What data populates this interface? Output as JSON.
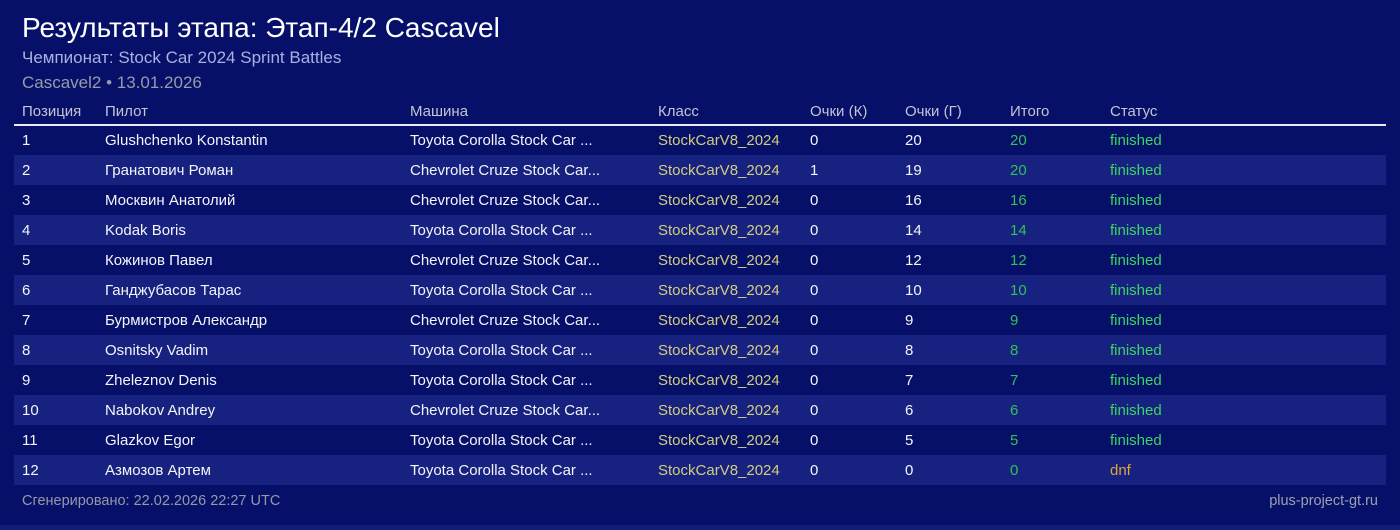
{
  "page": {
    "title": "Результаты этапа: Этап-4/2 Cascavel",
    "subtitle": "Чемпионат: Stock Car 2024 Sprint Battles",
    "meta": "Cascavel2 • 13.01.2026",
    "footer_left": "Сгенерировано: 22.02.2026 22:27 UTC",
    "footer_right": "plus-project-gt.ru"
  },
  "table": {
    "columns": [
      "Позиция",
      "Пилот",
      "Машина",
      "Класс",
      "Очки (К)",
      "Очки (Г)",
      "Итого",
      "Статус"
    ],
    "rows": [
      {
        "pos": "1",
        "pilot": "Glushchenko Konstantin",
        "car": "Toyota Corolla Stock Car ...",
        "car_class": "StockCarV8_2024",
        "pts_k": "0",
        "pts_g": "20",
        "total": "20",
        "status": "finished"
      },
      {
        "pos": "2",
        "pilot": "Гранатович Роман",
        "car": "Chevrolet Cruze Stock Car...",
        "car_class": "StockCarV8_2024",
        "pts_k": "1",
        "pts_g": "19",
        "total": "20",
        "status": "finished"
      },
      {
        "pos": "3",
        "pilot": "Москвин Анатолий",
        "car": "Chevrolet Cruze Stock Car...",
        "car_class": "StockCarV8_2024",
        "pts_k": "0",
        "pts_g": "16",
        "total": "16",
        "status": "finished"
      },
      {
        "pos": "4",
        "pilot": "Kodak Boris",
        "car": "Toyota Corolla Stock Car ...",
        "car_class": "StockCarV8_2024",
        "pts_k": "0",
        "pts_g": "14",
        "total": "14",
        "status": "finished"
      },
      {
        "pos": "5",
        "pilot": "Кожинов Павел",
        "car": "Chevrolet Cruze Stock Car...",
        "car_class": "StockCarV8_2024",
        "pts_k": "0",
        "pts_g": "12",
        "total": "12",
        "status": "finished"
      },
      {
        "pos": "6",
        "pilot": "Ганджубасов Тарас",
        "car": "Toyota Corolla Stock Car ...",
        "car_class": "StockCarV8_2024",
        "pts_k": "0",
        "pts_g": "10",
        "total": "10",
        "status": "finished"
      },
      {
        "pos": "7",
        "pilot": "Бурмистров Александр",
        "car": "Chevrolet Cruze Stock Car...",
        "car_class": "StockCarV8_2024",
        "pts_k": "0",
        "pts_g": "9",
        "total": "9",
        "status": "finished"
      },
      {
        "pos": "8",
        "pilot": "Osnitsky Vadim",
        "car": "Toyota Corolla Stock Car ...",
        "car_class": "StockCarV8_2024",
        "pts_k": "0",
        "pts_g": "8",
        "total": "8",
        "status": "finished"
      },
      {
        "pos": "9",
        "pilot": "Zheleznov Denis",
        "car": "Toyota Corolla Stock Car ...",
        "car_class": "StockCarV8_2024",
        "pts_k": "0",
        "pts_g": "7",
        "total": "7",
        "status": "finished"
      },
      {
        "pos": "10",
        "pilot": "Nabokov Andrey",
        "car": "Chevrolet Cruze Stock Car...",
        "car_class": "StockCarV8_2024",
        "pts_k": "0",
        "pts_g": "6",
        "total": "6",
        "status": "finished"
      },
      {
        "pos": "11",
        "pilot": "Glazkov Egor",
        "car": "Toyota Corolla Stock Car ...",
        "car_class": "StockCarV8_2024",
        "pts_k": "0",
        "pts_g": "5",
        "total": "5",
        "status": "finished"
      },
      {
        "pos": "12",
        "pilot": "Азмозов Артем",
        "car": "Toyota Corolla Stock Car ...",
        "car_class": "StockCarV8_2024",
        "pts_k": "0",
        "pts_g": "0",
        "total": "0",
        "status": "dnf"
      }
    ]
  },
  "colors": {
    "background": "#061069",
    "row_alt": "#172180",
    "class_text": "#d2cd7e",
    "total_green": "#2fc257",
    "status_finished": "#3cd463",
    "status_dnf": "#dfa23f",
    "subtitle": "#a9b0e2",
    "muted_text": "#989ba8"
  }
}
